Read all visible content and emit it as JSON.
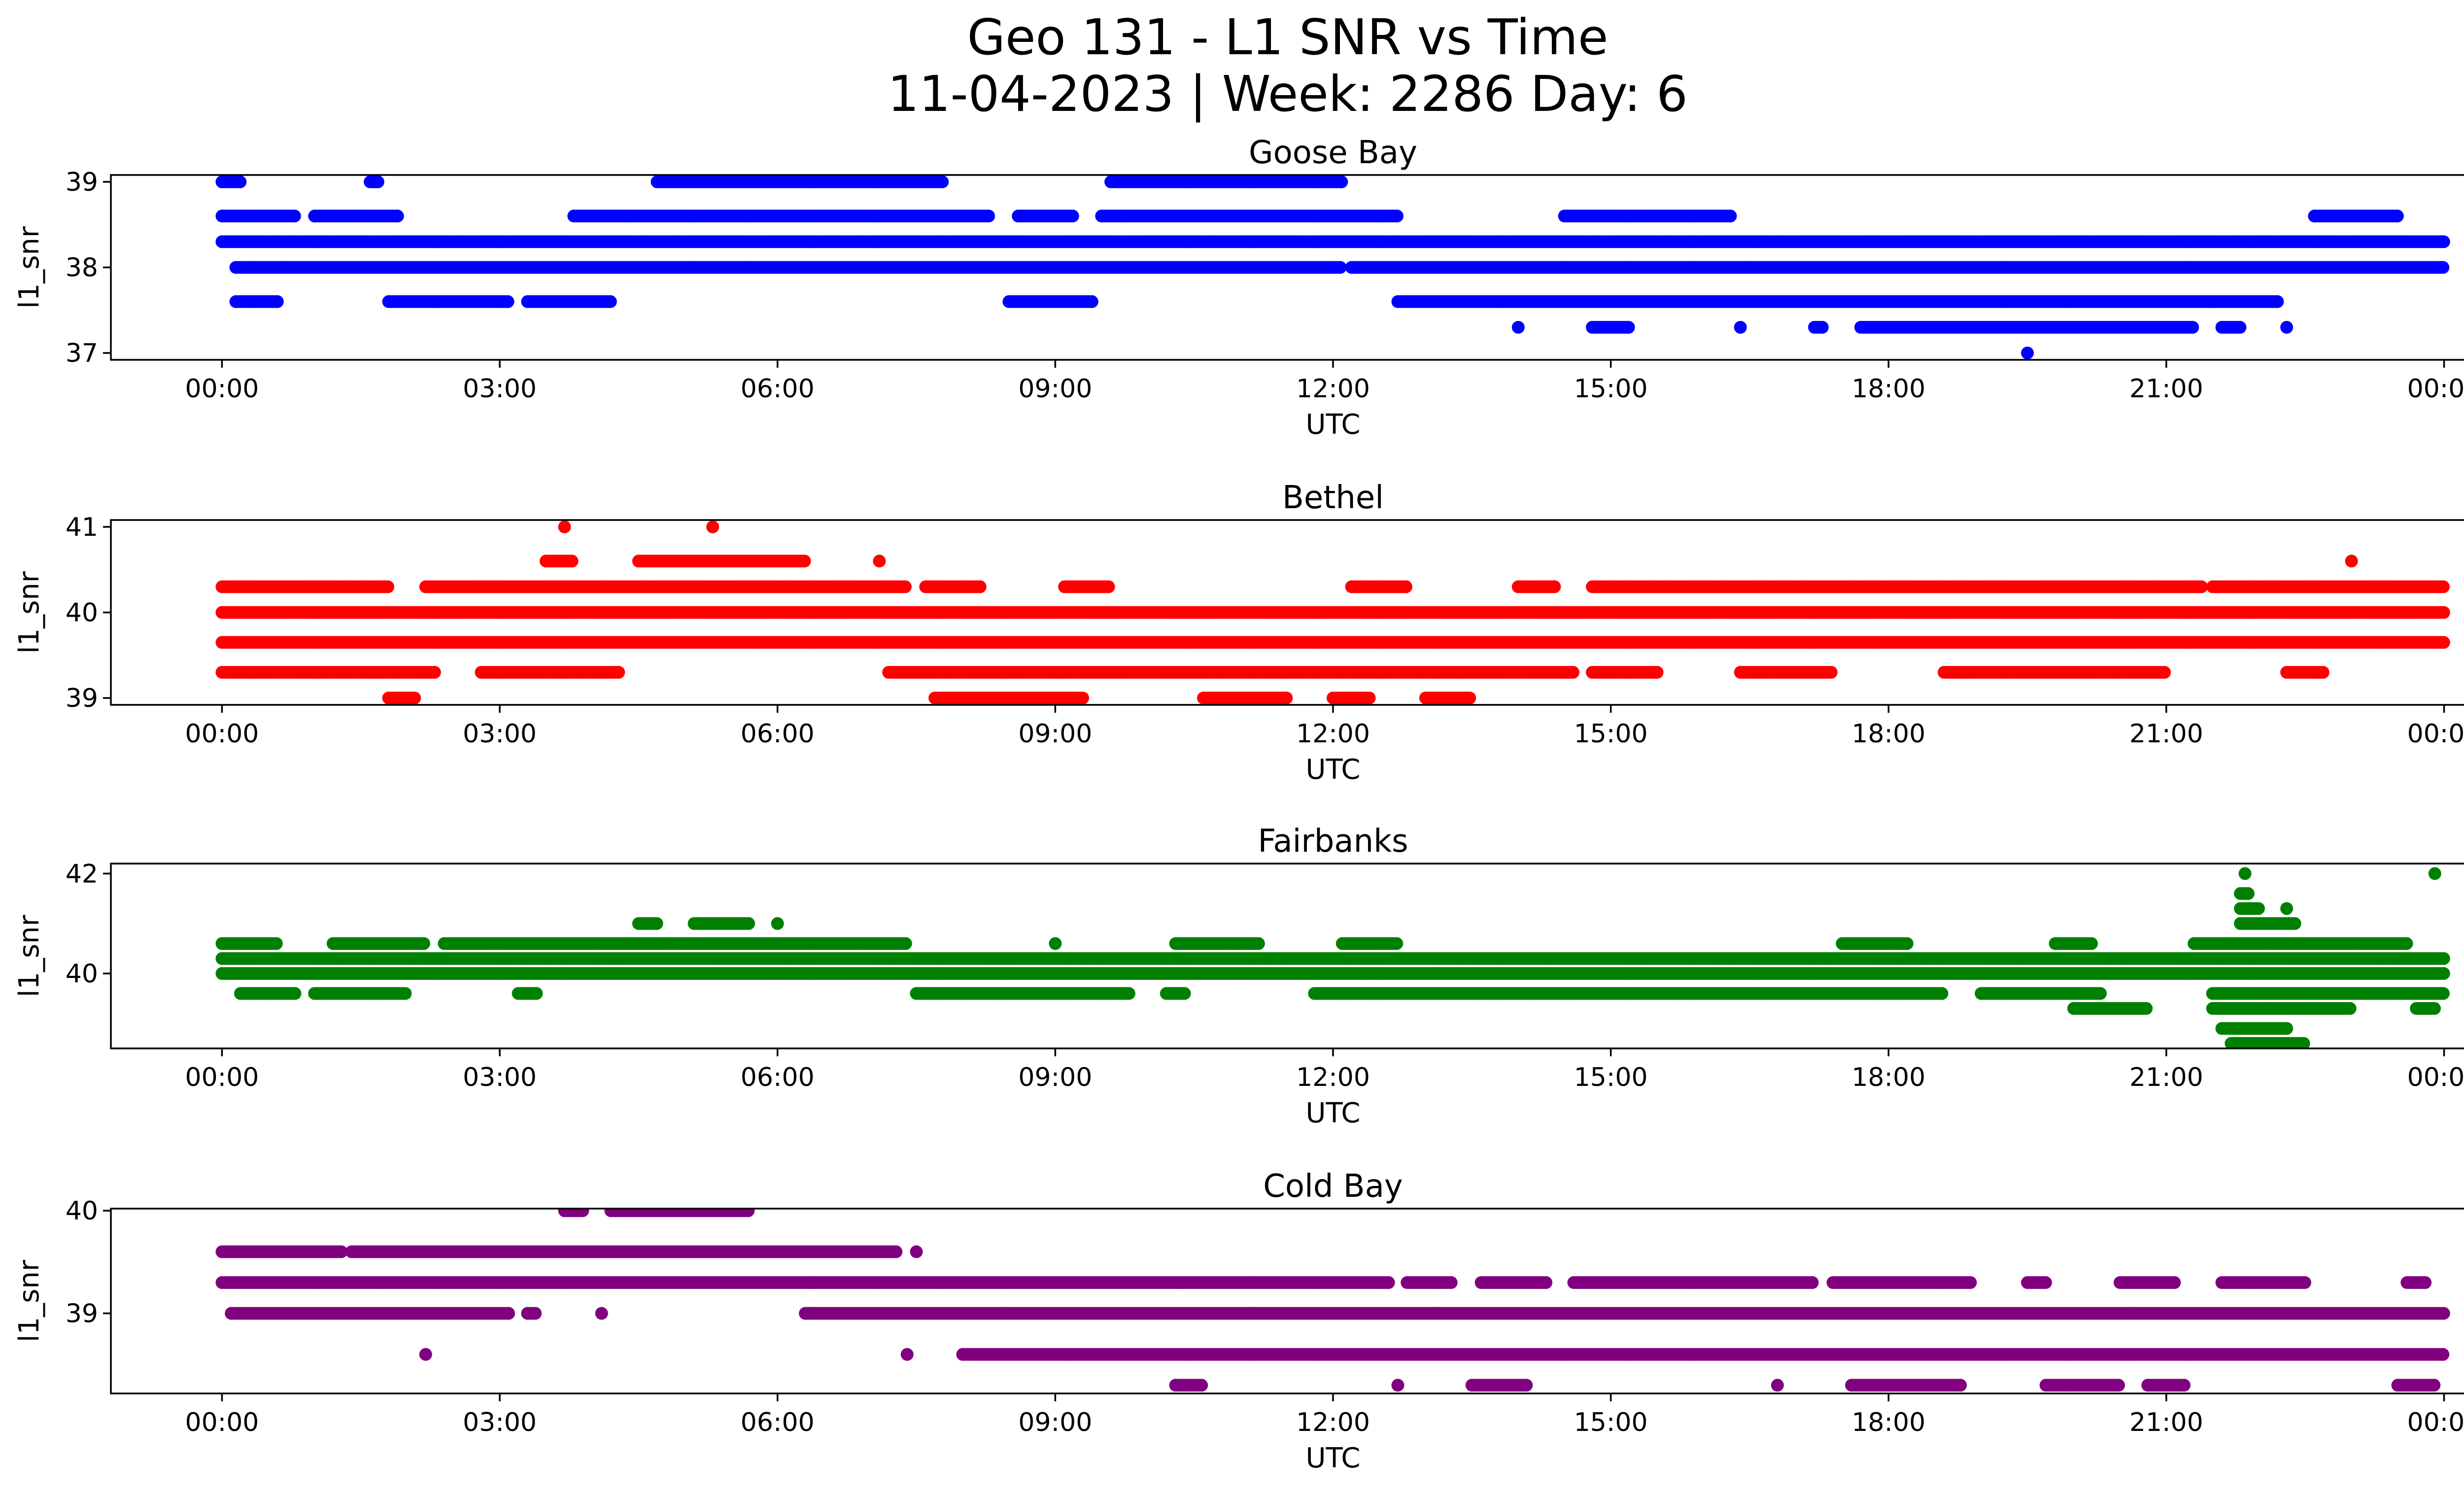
{
  "figure": {
    "title_line1": "Geo 131 - L1 SNR vs Time",
    "title_line2": "11-04-2023 | Week: 2286 Day: 6"
  },
  "chart_data": [
    {
      "type": "scatter",
      "title": "Goose Bay",
      "xlabel": "UTC",
      "ylabel": "l1_snr",
      "color": "#0000ff",
      "xlim_hours": [
        -1.2,
        25.2
      ],
      "x_ticks": [
        "00:00",
        "03:00",
        "06:00",
        "09:00",
        "12:00",
        "15:00",
        "18:00",
        "21:00",
        "00:00"
      ],
      "ylim": [
        36.92,
        39.08
      ],
      "y_ticks": [
        37,
        38,
        39
      ],
      "levels": [
        {
          "y": 38.3,
          "segments": [
            [
              0.0,
              24.0
            ]
          ]
        },
        {
          "y": 38.0,
          "segments": [
            [
              0.15,
              12.1
            ],
            [
              12.2,
              24.0
            ]
          ]
        },
        {
          "y": 38.6,
          "segments": [
            [
              0.0,
              0.8
            ],
            [
              1.0,
              1.9
            ],
            [
              3.8,
              8.3
            ],
            [
              8.6,
              9.2
            ],
            [
              9.5,
              12.7
            ],
            [
              14.5,
              16.3
            ],
            [
              22.6,
              23.5
            ]
          ]
        },
        {
          "y": 37.6,
          "segments": [
            [
              0.15,
              0.6
            ],
            [
              1.8,
              3.1
            ],
            [
              3.3,
              4.2
            ],
            [
              8.5,
              9.4
            ],
            [
              12.7,
              21.5
            ],
            [
              21.5,
              22.2
            ]
          ]
        },
        {
          "y": 39.0,
          "segments": [
            [
              0.0,
              0.2
            ],
            [
              1.6,
              1.7
            ],
            [
              4.7,
              7.8
            ],
            [
              9.6,
              12.1
            ]
          ]
        },
        {
          "y": 37.3,
          "segments": [
            [
              14.0,
              14.0
            ],
            [
              14.8,
              15.2
            ],
            [
              16.4,
              16.4
            ],
            [
              17.2,
              17.3
            ],
            [
              17.7,
              21.3
            ],
            [
              21.6,
              21.8
            ],
            [
              22.3,
              22.3
            ]
          ]
        },
        {
          "y": 37.0,
          "segments": [
            [
              19.5,
              19.5
            ]
          ]
        }
      ]
    },
    {
      "type": "scatter",
      "title": "Bethel",
      "xlabel": "UTC",
      "ylabel": "l1_snr",
      "color": "#ff0000",
      "xlim_hours": [
        -1.2,
        25.2
      ],
      "x_ticks": [
        "00:00",
        "03:00",
        "06:00",
        "09:00",
        "12:00",
        "15:00",
        "18:00",
        "21:00",
        "00:00"
      ],
      "ylim": [
        38.92,
        41.08
      ],
      "y_ticks": [
        39,
        40,
        41
      ],
      "levels": [
        {
          "y": 40.0,
          "segments": [
            [
              0.0,
              24.0
            ]
          ]
        },
        {
          "y": 39.65,
          "segments": [
            [
              0.0,
              24.0
            ]
          ]
        },
        {
          "y": 39.3,
          "segments": [
            [
              0.0,
              2.3
            ],
            [
              2.8,
              4.3
            ],
            [
              7.2,
              14.6
            ],
            [
              14.8,
              15.5
            ],
            [
              16.4,
              17.4
            ],
            [
              18.6,
              21.0
            ],
            [
              22.3,
              22.7
            ]
          ]
        },
        {
          "y": 40.3,
          "segments": [
            [
              0.0,
              1.8
            ],
            [
              2.2,
              7.4
            ],
            [
              7.6,
              8.2
            ],
            [
              9.1,
              9.6
            ],
            [
              12.2,
              12.8
            ],
            [
              14.0,
              14.4
            ],
            [
              14.8,
              21.4
            ],
            [
              21.5,
              24.0
            ]
          ]
        },
        {
          "y": 40.6,
          "segments": [
            [
              3.5,
              3.8
            ],
            [
              4.5,
              6.3
            ],
            [
              7.1,
              7.1
            ],
            [
              23.0,
              23.0
            ]
          ]
        },
        {
          "y": 39.0,
          "segments": [
            [
              1.8,
              2.1
            ],
            [
              7.7,
              9.3
            ],
            [
              10.6,
              11.5
            ],
            [
              12.0,
              12.4
            ],
            [
              13.0,
              13.5
            ]
          ]
        },
        {
          "y": 41.0,
          "segments": [
            [
              3.7,
              3.7
            ],
            [
              5.3,
              5.3
            ]
          ]
        }
      ]
    },
    {
      "type": "scatter",
      "title": "Fairbanks",
      "xlabel": "UTC",
      "ylabel": "l1_snr",
      "color": "#008000",
      "xlim_hours": [
        -1.2,
        25.2
      ],
      "x_ticks": [
        "00:00",
        "03:00",
        "06:00",
        "09:00",
        "12:00",
        "15:00",
        "18:00",
        "21:00",
        "00:00"
      ],
      "ylim": [
        38.5,
        42.2
      ],
      "y_ticks": [
        40,
        42
      ],
      "levels": [
        {
          "y": 40.0,
          "segments": [
            [
              0.0,
              24.0
            ]
          ]
        },
        {
          "y": 40.3,
          "segments": [
            [
              0.0,
              24.0
            ]
          ]
        },
        {
          "y": 40.6,
          "segments": [
            [
              0.0,
              0.6
            ],
            [
              1.2,
              2.2
            ],
            [
              2.4,
              7.4
            ],
            [
              9.0,
              9.0
            ],
            [
              10.3,
              11.2
            ],
            [
              12.1,
              12.7
            ],
            [
              17.5,
              18.2
            ],
            [
              19.8,
              20.2
            ],
            [
              21.3,
              23.6
            ]
          ]
        },
        {
          "y": 39.6,
          "segments": [
            [
              0.2,
              0.8
            ],
            [
              1.0,
              2.0
            ],
            [
              3.2,
              3.4
            ],
            [
              7.5,
              9.8
            ],
            [
              10.2,
              10.4
            ],
            [
              11.8,
              18.6
            ],
            [
              19.0,
              20.3
            ],
            [
              21.5,
              24.0
            ]
          ]
        },
        {
          "y": 41.0,
          "segments": [
            [
              4.5,
              4.7
            ],
            [
              5.1,
              5.7
            ],
            [
              6.0,
              6.0
            ],
            [
              21.8,
              22.4
            ]
          ]
        },
        {
          "y": 39.3,
          "segments": [
            [
              20.0,
              20.8
            ],
            [
              21.5,
              23.0
            ],
            [
              23.7,
              23.9
            ]
          ]
        },
        {
          "y": 38.9,
          "segments": [
            [
              21.6,
              22.3
            ]
          ]
        },
        {
          "y": 38.6,
          "segments": [
            [
              21.7,
              22.5
            ]
          ]
        },
        {
          "y": 41.3,
          "segments": [
            [
              21.8,
              22.0
            ],
            [
              22.3,
              22.3
            ]
          ]
        },
        {
          "y": 41.6,
          "segments": [
            [
              21.8,
              21.9
            ]
          ]
        },
        {
          "y": 42.0,
          "segments": [
            [
              21.85,
              21.85
            ],
            [
              23.9,
              23.9
            ]
          ]
        }
      ]
    },
    {
      "type": "scatter",
      "title": "Cold Bay",
      "xlabel": "UTC",
      "ylabel": "l1_snr",
      "color": "#800080",
      "xlim_hours": [
        -1.2,
        25.2
      ],
      "x_ticks": [
        "00:00",
        "03:00",
        "06:00",
        "09:00",
        "12:00",
        "15:00",
        "18:00",
        "21:00",
        "00:00"
      ],
      "ylim": [
        38.22,
        40.02
      ],
      "y_ticks": [
        39,
        40
      ],
      "levels": [
        {
          "y": 39.3,
          "segments": [
            [
              0.0,
              12.6
            ],
            [
              12.8,
              13.3
            ],
            [
              13.6,
              14.3
            ],
            [
              14.6,
              17.2
            ],
            [
              17.4,
              18.9
            ],
            [
              19.5,
              19.7
            ],
            [
              20.5,
              21.1
            ],
            [
              21.6,
              22.5
            ],
            [
              23.6,
              23.8
            ]
          ]
        },
        {
          "y": 39.0,
          "segments": [
            [
              0.1,
              3.1
            ],
            [
              3.3,
              3.4
            ],
            [
              4.1,
              4.1
            ],
            [
              6.3,
              24.0
            ]
          ]
        },
        {
          "y": 38.6,
          "segments": [
            [
              2.2,
              2.2
            ],
            [
              7.4,
              7.4
            ],
            [
              8.0,
              24.0
            ]
          ]
        },
        {
          "y": 39.6,
          "segments": [
            [
              0.0,
              1.3
            ],
            [
              1.4,
              7.3
            ],
            [
              7.5,
              7.5
            ]
          ]
        },
        {
          "y": 38.3,
          "segments": [
            [
              10.3,
              10.6
            ],
            [
              12.7,
              12.7
            ],
            [
              13.5,
              14.1
            ],
            [
              16.8,
              16.8
            ],
            [
              17.6,
              18.8
            ],
            [
              19.7,
              20.5
            ],
            [
              20.8,
              21.2
            ],
            [
              23.5,
              23.9
            ]
          ]
        },
        {
          "y": 40.0,
          "segments": [
            [
              3.7,
              3.9
            ],
            [
              4.2,
              5.7
            ]
          ]
        }
      ]
    }
  ]
}
